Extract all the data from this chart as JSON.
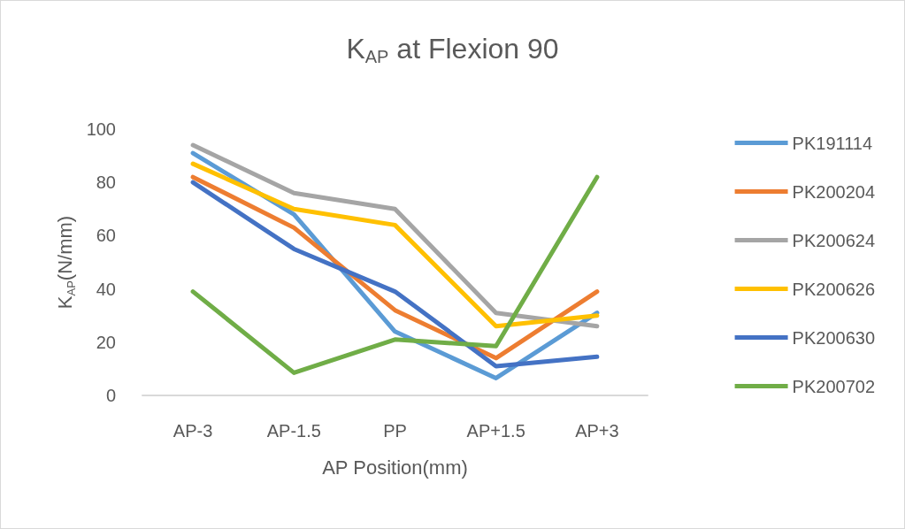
{
  "chart_data": {
    "type": "line",
    "title": "K$_{AP}$ at Flexion 90",
    "xlabel": "AP Position(mm)",
    "ylabel": "K$_{AP}$(N/mm)",
    "categories": [
      "AP-3",
      "AP-1.5",
      "PP",
      "AP+1.5",
      "AP+3"
    ],
    "series": [
      {
        "name": "PK191114",
        "color": "#5b9bd5",
        "values": [
          91,
          68,
          24,
          6.5,
          31
        ]
      },
      {
        "name": "PK200204",
        "color": "#ed7d31",
        "values": [
          82,
          63,
          32,
          14,
          39
        ]
      },
      {
        "name": "PK200624",
        "color": "#a5a5a5",
        "values": [
          94,
          76,
          70,
          31,
          26
        ]
      },
      {
        "name": "PK200626",
        "color": "#ffc000",
        "values": [
          87,
          70,
          64,
          26,
          30
        ]
      },
      {
        "name": "PK200630",
        "color": "#4472c4",
        "values": [
          80,
          55,
          39,
          11,
          14.5
        ]
      },
      {
        "name": "PK200702",
        "color": "#70ad47",
        "values": [
          39,
          8.5,
          21,
          18.5,
          82
        ]
      }
    ],
    "ylim": [
      0,
      100
    ],
    "yticks": [
      0,
      20,
      40,
      60,
      80,
      100
    ],
    "grid": false,
    "legend": "right",
    "marker": "none",
    "line_style": "solid"
  }
}
